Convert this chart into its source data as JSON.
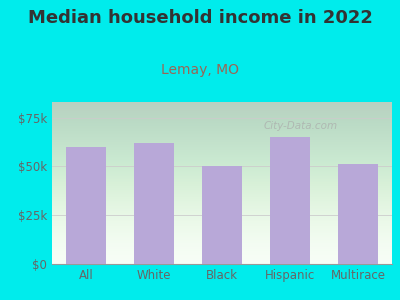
{
  "title": "Median household income in 2022",
  "subtitle": "Lemay, MO",
  "categories": [
    "All",
    "White",
    "Black",
    "Hispanic",
    "Multirace"
  ],
  "values": [
    60000,
    62000,
    50000,
    65000,
    51000
  ],
  "bar_color": "#b8a8d8",
  "background_outer": "#00ecec",
  "background_inner_top": "#e8f5e8",
  "background_inner_bottom": "#f8fff8",
  "title_color": "#333333",
  "subtitle_color": "#996655",
  "tick_label_color": "#666666",
  "yticks": [
    0,
    25000,
    50000,
    75000
  ],
  "ytick_labels": [
    "$0",
    "$25k",
    "$50k",
    "$75k"
  ],
  "ylim": [
    0,
    83000
  ],
  "watermark": "City-Data.com",
  "title_fontsize": 13,
  "subtitle_fontsize": 10,
  "tick_fontsize": 8.5
}
